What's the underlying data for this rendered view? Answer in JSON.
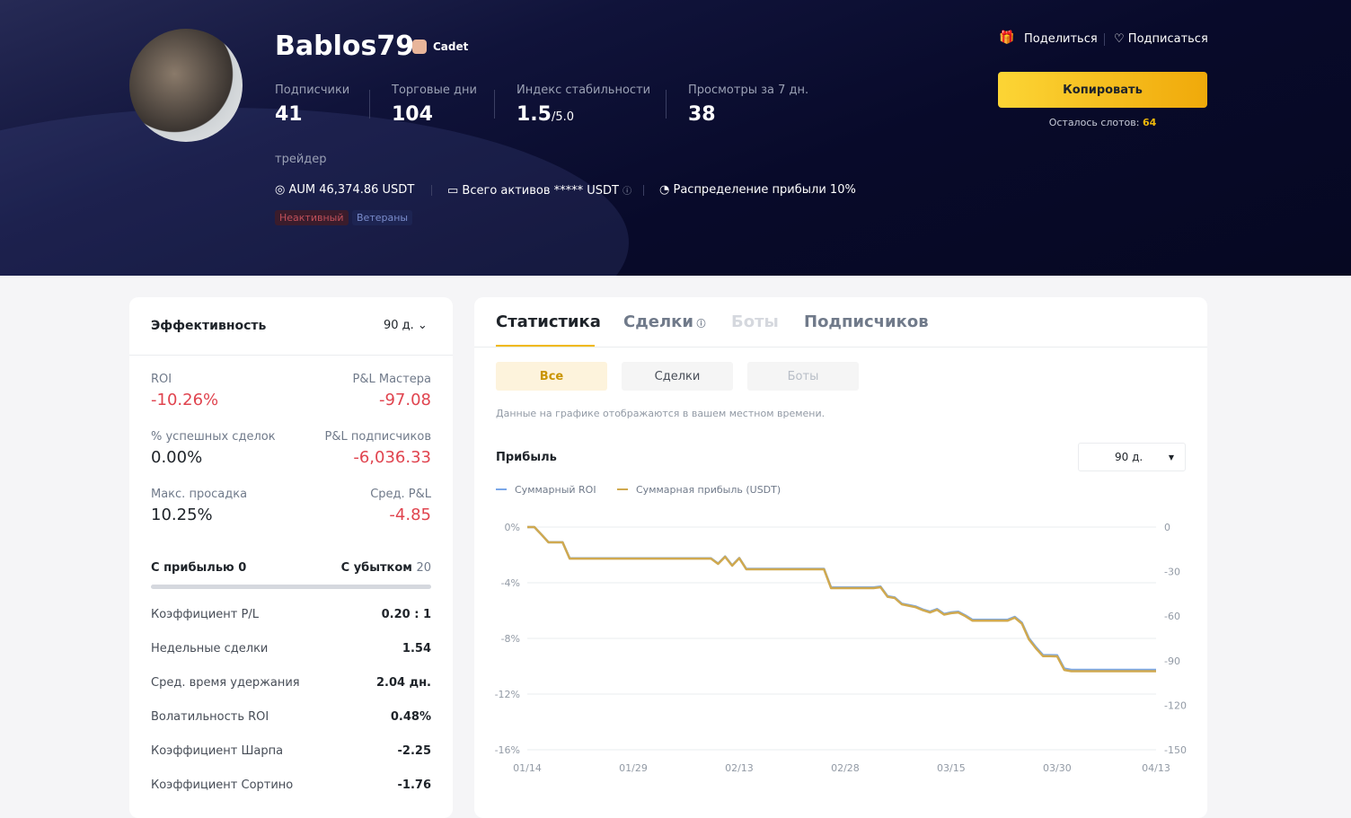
{
  "header": {
    "name": "Bablos79",
    "badge": "Cadet",
    "stats": [
      {
        "label": "Подписчики",
        "value": "41"
      },
      {
        "label": "Торговые дни",
        "value": "104"
      },
      {
        "label": "Индекс стабильности",
        "value": "1.5",
        "suffix": "/5.0"
      },
      {
        "label": "Просмотры за 7 дн.",
        "value": "38"
      }
    ],
    "share": "Поделиться",
    "subscribe": "Подписаться",
    "copy": "Копировать",
    "slots_label": "Осталось слотов:",
    "slots": "64",
    "bio": "трейдер",
    "info": [
      "AUM 46,374.86 USDT",
      "Всего активов ***** USDT",
      "Распределение прибыли 10%"
    ],
    "tags": [
      "Неактивный",
      "Ветераны"
    ]
  },
  "performance": {
    "title": "Эффективность",
    "period": "90 д.",
    "metrics": [
      {
        "label": "ROI",
        "value": "-10.26%"
      },
      {
        "label": "P&L Мастера",
        "value": "-97.08"
      },
      {
        "label": "% успешных сделок",
        "value": "0.00%"
      },
      {
        "label": "P&L подписчиков",
        "value": "-6,036.33"
      },
      {
        "label": "Макс. просадка",
        "value": "10.25%"
      },
      {
        "label": "Сред. P&L",
        "value": "-4.85"
      }
    ],
    "wins_label": "С прибылью",
    "wins": "0",
    "losses_label": "С убытком",
    "losses": "20",
    "rows": [
      [
        "Коэффициент P/L",
        "0.20 : 1"
      ],
      [
        "Недельные сделки",
        "1.54"
      ],
      [
        "Сред. время удержания",
        "2.04 дн."
      ],
      [
        "Волатильность ROI",
        "0.48%"
      ],
      [
        "Коэффициент Шарпа",
        "-2.25"
      ],
      [
        "Коэффициент Сортино",
        "-1.76"
      ]
    ]
  },
  "stats": {
    "tabs": [
      "Статистика",
      "Сделки",
      "Боты",
      "Подписчиков"
    ],
    "subtabs": [
      "Все",
      "Сделки",
      "Боты"
    ],
    "note": "Данные на графике отображаются в вашем местном времени.",
    "period": "90 д."
  },
  "chart_data": {
    "type": "line",
    "title": "Прибыль",
    "categories": [
      "01/14",
      null,
      null,
      null,
      null,
      null,
      null,
      null,
      null,
      null,
      null,
      null,
      null,
      null,
      null,
      "01/29",
      null,
      null,
      null,
      null,
      null,
      null,
      null,
      null,
      null,
      null,
      null,
      null,
      null,
      null,
      "02/13",
      null,
      null,
      null,
      null,
      null,
      null,
      null,
      null,
      null,
      null,
      null,
      null,
      null,
      null,
      "02/28",
      null,
      null,
      null,
      null,
      null,
      null,
      null,
      null,
      null,
      null,
      null,
      null,
      null,
      null,
      "03/15",
      null,
      null,
      null,
      null,
      null,
      null,
      null,
      null,
      null,
      null,
      null,
      null,
      null,
      null,
      "03/30",
      null,
      null,
      null,
      null,
      null,
      null,
      null,
      null,
      null,
      null,
      null,
      null,
      null,
      "04/13"
    ],
    "ylim": [
      -16,
      0
    ],
    "yticks": [
      {
        "value": 0,
        "label": "0%"
      },
      {
        "value": -4,
        "label": "-4%"
      },
      {
        "value": -8,
        "label": "-8%"
      },
      {
        "value": -12,
        "label": "-12%"
      },
      {
        "value": -16,
        "label": "-16%"
      }
    ],
    "y2lim": [
      -150,
      0
    ],
    "y2ticks": [
      0,
      -30,
      -60,
      -90,
      -120,
      -150
    ],
    "grid": true,
    "series": [
      {
        "name": "Суммарный ROI",
        "color": "#7aa7e8",
        "axis": "y",
        "values": [
          0,
          0,
          -0.53,
          -1.09,
          -1.09,
          -1.09,
          -2.24,
          -2.24,
          -2.24,
          -2.24,
          -2.24,
          -2.24,
          -2.24,
          -2.24,
          -2.24,
          -2.24,
          -2.24,
          -2.24,
          -2.24,
          -2.24,
          -2.24,
          -2.24,
          -2.24,
          -2.24,
          -2.24,
          -2.24,
          -2.24,
          -2.62,
          -2.11,
          -2.75,
          -2.22,
          -3.0,
          -3.0,
          -3.0,
          -3.0,
          -3.0,
          -3.0,
          -3.0,
          -3.0,
          -3.0,
          -3.0,
          -3.0,
          -3.0,
          -4.34,
          -4.34,
          -4.34,
          -4.34,
          -4.34,
          -4.34,
          -4.34,
          -4.28,
          -4.97,
          -5.05,
          -5.5,
          -5.6,
          -5.71,
          -5.92,
          -6.08,
          -5.89,
          -6.24,
          -6.13,
          -6.08,
          -6.34,
          -6.66,
          -6.66,
          -6.66,
          -6.66,
          -6.66,
          -6.66,
          -6.45,
          -6.87,
          -7.99,
          -8.64,
          -9.2,
          -9.2,
          -9.21,
          -10.17,
          -10.26,
          -10.26,
          -10.26,
          -10.26,
          -10.26,
          -10.26,
          -10.26,
          -10.26,
          -10.26,
          -10.26,
          -10.26,
          -10.26,
          -10.26
        ]
      },
      {
        "name": "Суммарная прибыль (USDT)",
        "color": "#d0a94f",
        "axis": "y2",
        "values": [
          0,
          0,
          -5,
          -10.3,
          -10.3,
          -10.3,
          -21.2,
          -21.2,
          -21.2,
          -21.2,
          -21.2,
          -21.2,
          -21.2,
          -21.2,
          -21.2,
          -21.2,
          -21.2,
          -21.2,
          -21.2,
          -21.2,
          -21.2,
          -21.2,
          -21.2,
          -21.2,
          -21.2,
          -21.2,
          -21.2,
          -24.8,
          -20,
          -26,
          -21,
          -28.4,
          -28.4,
          -28.4,
          -28.4,
          -28.4,
          -28.4,
          -28.4,
          -28.4,
          -28.4,
          -28.4,
          -28.4,
          -28.4,
          -41.1,
          -41.1,
          -41.1,
          -41.1,
          -41.1,
          -41.1,
          -41.1,
          -40.5,
          -47,
          -47.8,
          -52,
          -53,
          -54,
          -56,
          -57.5,
          -55.7,
          -59,
          -58,
          -57.5,
          -60,
          -63,
          -63,
          -63,
          -63,
          -63,
          -63,
          -61,
          -65,
          -75.6,
          -81.7,
          -87,
          -87,
          -87.1,
          -96.2,
          -97.08,
          -97.08,
          -97.08,
          -97.08,
          -97.08,
          -97.08,
          -97.08,
          -97.08,
          -97.08,
          -97.08,
          -97.08,
          -97.08,
          -97.08
        ]
      }
    ]
  }
}
